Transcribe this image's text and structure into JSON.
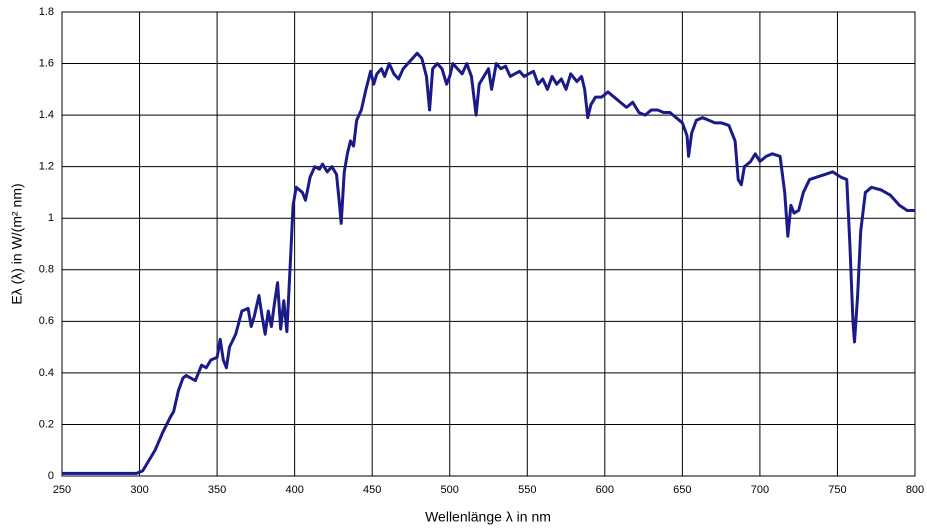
{
  "chart_data": {
    "type": "line",
    "xlabel": "Wellenlänge λ in nm",
    "ylabel": "Eλ (λ) in W/(m² nm)",
    "xlim": [
      250,
      800
    ],
    "xticks": [
      250,
      300,
      350,
      400,
      450,
      500,
      550,
      600,
      650,
      700,
      750,
      800
    ],
    "ylim": [
      0,
      1.8
    ],
    "yticks": [
      0,
      0.2,
      0.4,
      0.6,
      0.8,
      1,
      1.2,
      1.4,
      1.6,
      1.8
    ],
    "grid": true,
    "series": [
      {
        "color": "#1a1a8a",
        "x": [
          250,
          260,
          270,
          280,
          290,
          298,
          302,
          305,
          310,
          315,
          320,
          322,
          325,
          328,
          330,
          333,
          336,
          340,
          343,
          346,
          350,
          352,
          354,
          356,
          358,
          362,
          366,
          370,
          372,
          374,
          377,
          379,
          381,
          383,
          385,
          387,
          389,
          391,
          393,
          395,
          397,
          399,
          401,
          405,
          407,
          410,
          413,
          416,
          418,
          421,
          424,
          427,
          429,
          430,
          432,
          434,
          436,
          438,
          440,
          443,
          446,
          449,
          451,
          453,
          456,
          458,
          461,
          464,
          467,
          470,
          473,
          476,
          479,
          482,
          485,
          487,
          489,
          492,
          495,
          498,
          500,
          502,
          505,
          508,
          511,
          514,
          516,
          517,
          519,
          522,
          525,
          527,
          530,
          533,
          536,
          539,
          542,
          545,
          548,
          551,
          554,
          557,
          560,
          563,
          566,
          569,
          572,
          575,
          578,
          582,
          585,
          587,
          589,
          591,
          594,
          598,
          602,
          606,
          610,
          614,
          618,
          622,
          626,
          630,
          634,
          638,
          642,
          646,
          650,
          653,
          654,
          656,
          659,
          663,
          667,
          671,
          675,
          680,
          684,
          686,
          688,
          690,
          694,
          697,
          700,
          704,
          708,
          713,
          716,
          718,
          720,
          722,
          725,
          728,
          732,
          737,
          742,
          747,
          752,
          756,
          758,
          760,
          761,
          763,
          765,
          768,
          772,
          778,
          784,
          790,
          795,
          800
        ],
        "values": [
          0.01,
          0.01,
          0.01,
          0.01,
          0.01,
          0.01,
          0.02,
          0.05,
          0.1,
          0.17,
          0.23,
          0.25,
          0.33,
          0.38,
          0.39,
          0.38,
          0.37,
          0.43,
          0.42,
          0.45,
          0.46,
          0.53,
          0.45,
          0.42,
          0.5,
          0.55,
          0.64,
          0.65,
          0.58,
          0.62,
          0.7,
          0.62,
          0.55,
          0.64,
          0.58,
          0.67,
          0.75,
          0.57,
          0.68,
          0.56,
          0.8,
          1.05,
          1.12,
          1.1,
          1.07,
          1.16,
          1.2,
          1.19,
          1.21,
          1.18,
          1.2,
          1.17,
          1.05,
          0.98,
          1.18,
          1.25,
          1.3,
          1.28,
          1.38,
          1.42,
          1.5,
          1.57,
          1.52,
          1.56,
          1.58,
          1.55,
          1.6,
          1.56,
          1.54,
          1.58,
          1.6,
          1.62,
          1.64,
          1.62,
          1.55,
          1.42,
          1.58,
          1.6,
          1.58,
          1.52,
          1.55,
          1.6,
          1.58,
          1.56,
          1.6,
          1.55,
          1.45,
          1.4,
          1.52,
          1.55,
          1.58,
          1.5,
          1.6,
          1.58,
          1.59,
          1.55,
          1.56,
          1.57,
          1.55,
          1.56,
          1.57,
          1.52,
          1.54,
          1.5,
          1.55,
          1.52,
          1.54,
          1.5,
          1.56,
          1.53,
          1.55,
          1.5,
          1.39,
          1.44,
          1.47,
          1.47,
          1.49,
          1.47,
          1.45,
          1.43,
          1.45,
          1.41,
          1.4,
          1.42,
          1.42,
          1.41,
          1.41,
          1.39,
          1.37,
          1.32,
          1.24,
          1.33,
          1.38,
          1.39,
          1.38,
          1.37,
          1.37,
          1.36,
          1.3,
          1.15,
          1.13,
          1.2,
          1.22,
          1.25,
          1.22,
          1.24,
          1.25,
          1.24,
          1.1,
          0.93,
          1.05,
          1.02,
          1.03,
          1.1,
          1.15,
          1.16,
          1.17,
          1.18,
          1.16,
          1.15,
          0.9,
          0.6,
          0.52,
          0.7,
          0.95,
          1.1,
          1.12,
          1.11,
          1.09,
          1.05,
          1.03,
          1.03
        ]
      }
    ]
  }
}
